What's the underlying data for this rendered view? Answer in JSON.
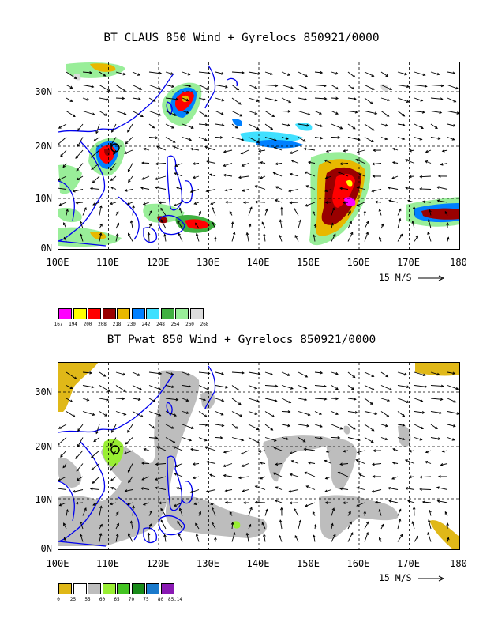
{
  "panels": [
    {
      "title": "BT CLAUS 850 Wind + Gyrelocs 850921/0000",
      "lat_labels": [
        "30N",
        "20N",
        "10N",
        "0N"
      ],
      "lon_labels": [
        "100E",
        "110E",
        "120E",
        "130E",
        "140E",
        "150E",
        "160E",
        "170E",
        "180"
      ],
      "scale_label": "15 M/S",
      "legend": {
        "colors": [
          "#ff00ff",
          "#ffff00",
          "#ff0000",
          "#990000",
          "#e8b800",
          "#0080ff",
          "#40e0ff",
          "#40b040",
          "#99ee99",
          "#dcdcdc"
        ],
        "labels": [
          "167",
          "194",
          "200",
          "208",
          "218",
          "230",
          "242",
          "248",
          "254",
          "260",
          "268"
        ]
      }
    },
    {
      "title": "BT Pwat 850 Wind + Gyrelocs 850921/0000",
      "lat_labels": [
        "30N",
        "20N",
        "10N",
        "0N"
      ],
      "lon_labels": [
        "100E",
        "110E",
        "120E",
        "130E",
        "140E",
        "150E",
        "160E",
        "170E",
        "180"
      ],
      "scale_label": "15 M/S",
      "legend": {
        "colors": [
          "#e0b818",
          "#ffffff",
          "#bdbdbd",
          "#99ee33",
          "#44c422",
          "#1a8c1a",
          "#1a7acc",
          "#8a1ab4"
        ],
        "labels": [
          "0",
          "25",
          "55",
          "60",
          "65",
          "70",
          "75",
          "80",
          "85.14"
        ]
      }
    }
  ],
  "icons": {
    "arrow": "arrow-right-icon",
    "gyre": "circle-marker-icon"
  }
}
